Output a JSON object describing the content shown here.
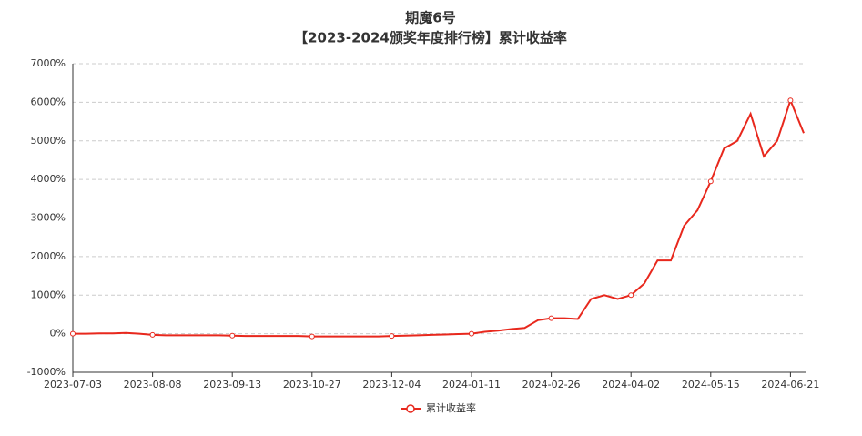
{
  "chart_data": {
    "type": "line",
    "title": "期魔6号",
    "subtitle": "【2023-2024颁奖年度排行榜】累计收益率",
    "categories": [
      "2023-07-03",
      null,
      null,
      null,
      null,
      null,
      "2023-08-08",
      null,
      null,
      null,
      null,
      null,
      "2023-09-13",
      null,
      null,
      null,
      null,
      null,
      "2023-10-27",
      null,
      null,
      null,
      null,
      null,
      "2023-12-04",
      null,
      null,
      null,
      null,
      null,
      "2024-01-11",
      null,
      null,
      null,
      null,
      null,
      "2024-02-26",
      null,
      null,
      null,
      null,
      null,
      "2024-04-02",
      null,
      null,
      null,
      null,
      null,
      "2024-05-15",
      null,
      null,
      null,
      null,
      null,
      "2024-06-21",
      null
    ],
    "series": [
      {
        "name": "累计收益率",
        "color": "#e8281d",
        "values": [
          0,
          0,
          10,
          10,
          20,
          0,
          -30,
          -40,
          -40,
          -40,
          -40,
          -40,
          -50,
          -60,
          -60,
          -60,
          -60,
          -60,
          -70,
          -70,
          -70,
          -70,
          -70,
          -70,
          -60,
          -50,
          -40,
          -30,
          -20,
          -10,
          0,
          50,
          80,
          120,
          150,
          350,
          400,
          400,
          380,
          900,
          1000,
          900,
          1000,
          1300,
          1900,
          1900,
          2800,
          3200,
          3950,
          4800,
          5000,
          5700,
          4600,
          5000,
          6050,
          5200
        ]
      }
    ],
    "ylim": [
      -1000,
      7000
    ],
    "yticks": [
      {
        "value": -1000,
        "label": "-1000%"
      },
      {
        "value": 0,
        "label": "0%"
      },
      {
        "value": 1000,
        "label": "1000%"
      },
      {
        "value": 2000,
        "label": "2000%"
      },
      {
        "value": 3000,
        "label": "3000%"
      },
      {
        "value": 4000,
        "label": "4000%"
      },
      {
        "value": 5000,
        "label": "5000%"
      },
      {
        "value": 6000,
        "label": "6000%"
      },
      {
        "value": 7000,
        "label": "7000%"
      }
    ],
    "grid": true,
    "legend": "bottom"
  }
}
